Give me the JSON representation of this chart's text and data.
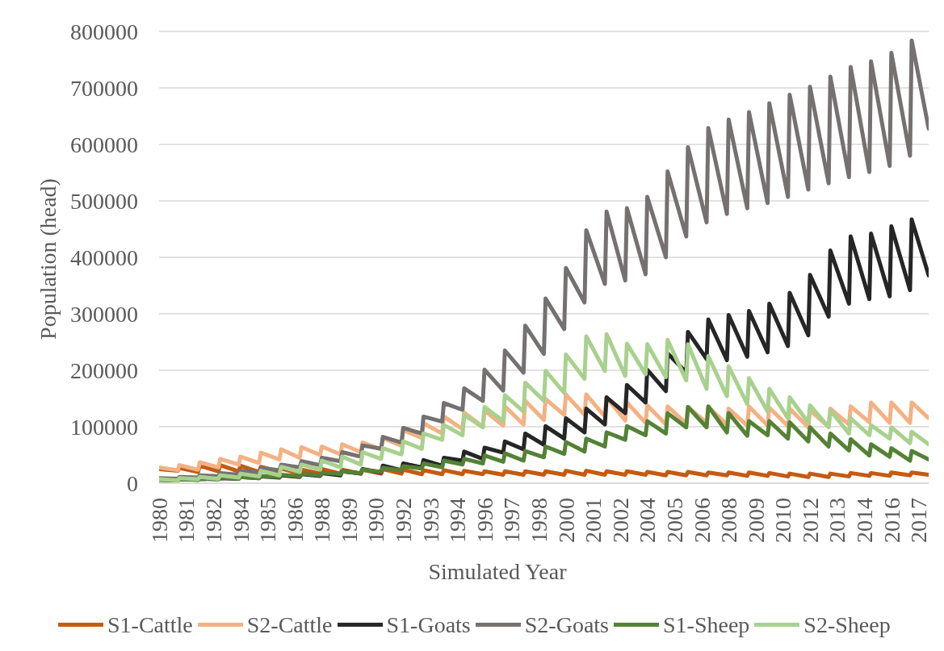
{
  "chart_data": {
    "type": "line",
    "xlabel": "Simulated Year",
    "ylabel": "Population (head)",
    "x": [
      "1980-01",
      "1980-12",
      "1981-01",
      "1981-12",
      "1982-01",
      "1982-12",
      "1983-01",
      "1983-12",
      "1984-01",
      "1984-12",
      "1985-01",
      "1985-12",
      "1986-01",
      "1986-12",
      "1987-01",
      "1987-12",
      "1988-01",
      "1988-12",
      "1989-01",
      "1989-12",
      "1990-01",
      "1990-12",
      "1991-01",
      "1991-12",
      "1992-01",
      "1992-12",
      "1993-01",
      "1993-12",
      "1994-01",
      "1994-12",
      "1995-01",
      "1995-12",
      "1996-01",
      "1996-12",
      "1997-01",
      "1997-12",
      "1998-01",
      "1998-12",
      "1999-01",
      "1999-12",
      "2000-01",
      "2000-12",
      "2001-01",
      "2001-12",
      "2002-01",
      "2002-12",
      "2003-01",
      "2003-12",
      "2004-01",
      "2004-12",
      "2005-01",
      "2005-12",
      "2006-01",
      "2006-12",
      "2007-01",
      "2007-12",
      "2008-01",
      "2008-12",
      "2009-01",
      "2009-12",
      "2010-01",
      "2010-12",
      "2011-01",
      "2011-12",
      "2012-01",
      "2012-12",
      "2013-01",
      "2013-12",
      "2014-01",
      "2014-12",
      "2015-01",
      "2015-12",
      "2016-01",
      "2016-12",
      "2017-01",
      "2017-11"
    ],
    "xlim": [
      "1980-01",
      "2017-11"
    ],
    "xticks": [
      {
        "value": "1980-01",
        "label": "1980"
      },
      {
        "value": "1981-05",
        "label": "1981"
      },
      {
        "value": "1982-09",
        "label": "1982"
      },
      {
        "value": "1984-01",
        "label": "1984"
      },
      {
        "value": "1985-05",
        "label": "1985"
      },
      {
        "value": "1986-09",
        "label": "1986"
      },
      {
        "value": "1988-01",
        "label": "1988"
      },
      {
        "value": "1989-05",
        "label": "1989"
      },
      {
        "value": "1990-09",
        "label": "1990"
      },
      {
        "value": "1992-01",
        "label": "1992"
      },
      {
        "value": "1993-05",
        "label": "1993"
      },
      {
        "value": "1994-09",
        "label": "1994"
      },
      {
        "value": "1996-01",
        "label": "1996"
      },
      {
        "value": "1997-05",
        "label": "1997"
      },
      {
        "value": "1998-09",
        "label": "1998"
      },
      {
        "value": "2000-01",
        "label": "2000"
      },
      {
        "value": "2001-05",
        "label": "2001"
      },
      {
        "value": "2002-09",
        "label": "2002"
      },
      {
        "value": "2004-01",
        "label": "2004"
      },
      {
        "value": "2005-05",
        "label": "2005"
      },
      {
        "value": "2006-09",
        "label": "2006"
      },
      {
        "value": "2008-01",
        "label": "2008"
      },
      {
        "value": "2009-05",
        "label": "2009"
      },
      {
        "value": "2010-09",
        "label": "2010"
      },
      {
        "value": "2012-01",
        "label": "2012"
      },
      {
        "value": "2013-05",
        "label": "2013"
      },
      {
        "value": "2014-09",
        "label": "2014"
      },
      {
        "value": "2016-01",
        "label": "2016"
      },
      {
        "value": "2017-05",
        "label": "2017"
      }
    ],
    "ylim": [
      0,
      800000
    ],
    "yticks": [
      0,
      100000,
      200000,
      300000,
      400000,
      500000,
      600000,
      700000,
      800000
    ],
    "grid": "y",
    "legend": "bottom",
    "series": [
      {
        "name": "S1-Cattle",
        "color": "#c55a11",
        "values": [
          25000,
          22000,
          27000,
          20000,
          31000,
          21000,
          32000,
          21000,
          31000,
          20000,
          29000,
          20000,
          26000,
          17000,
          24000,
          17000,
          25000,
          17000,
          24000,
          17000,
          24000,
          17000,
          25000,
          17000,
          24000,
          16000,
          23000,
          16000,
          23000,
          16000,
          22000,
          16000,
          21000,
          15000,
          21000,
          15000,
          21000,
          15000,
          21000,
          15000,
          22000,
          15000,
          22000,
          15000,
          21000,
          15000,
          21000,
          15000,
          20000,
          14000,
          20000,
          14000,
          20000,
          14000,
          19000,
          14000,
          19000,
          13000,
          19000,
          13000,
          18000,
          12000,
          17000,
          11000,
          17000,
          11000,
          17000,
          12000,
          18000,
          13000,
          18000,
          13000,
          19000,
          14000,
          19000,
          15000
        ]
      },
      {
        "name": "S2-Cattle",
        "color": "#f4b183",
        "values": [
          28000,
          23000,
          32000,
          24000,
          37000,
          28000,
          43000,
          33000,
          47000,
          36000,
          54000,
          42000,
          60000,
          45000,
          64000,
          50000,
          65000,
          51000,
          69000,
          55000,
          72000,
          60000,
          80000,
          66000,
          94000,
          80000,
          106000,
          88000,
          118000,
          96000,
          125000,
          100000,
          129000,
          102000,
          136000,
          104000,
          146000,
          112000,
          149000,
          121000,
          157000,
          121000,
          157000,
          118000,
          152000,
          111000,
          143000,
          107000,
          138000,
          104000,
          136000,
          106000,
          135000,
          107000,
          135000,
          104000,
          132000,
          102000,
          136000,
          102000,
          134000,
          101000,
          132000,
          99000,
          129000,
          100000,
          132000,
          104000,
          136000,
          108000,
          143000,
          107000,
          143000,
          107000,
          143000,
          115000
        ]
      },
      {
        "name": "S1-Goats",
        "color": "#262626",
        "values": [
          6000,
          5000,
          7000,
          6000,
          8000,
          7000,
          9000,
          8000,
          11000,
          9000,
          12000,
          10000,
          14000,
          11000,
          16000,
          13000,
          18000,
          14000,
          21000,
          17000,
          25000,
          19000,
          31000,
          23000,
          35000,
          28000,
          41000,
          31000,
          45000,
          40000,
          56000,
          43000,
          63000,
          54000,
          74000,
          60000,
          88000,
          68000,
          101000,
          79000,
          115000,
          90000,
          132000,
          104000,
          152000,
          124000,
          174000,
          143000,
          201000,
          163000,
          230000,
          196000,
          268000,
          220000,
          290000,
          218000,
          298000,
          224000,
          305000,
          232000,
          318000,
          243000,
          337000,
          262000,
          369000,
          295000,
          412000,
          318000,
          437000,
          326000,
          442000,
          331000,
          455000,
          342000,
          467000,
          368000
        ]
      },
      {
        "name": "S2-Goats",
        "color": "#767171",
        "values": [
          9000,
          8000,
          11000,
          10000,
          14000,
          12000,
          18000,
          15000,
          22000,
          19000,
          27000,
          23000,
          33000,
          28000,
          39000,
          32000,
          45000,
          39000,
          55000,
          47000,
          67000,
          61000,
          82000,
          72000,
          98000,
          88000,
          118000,
          109000,
          142000,
          130000,
          168000,
          146000,
          201000,
          164000,
          235000,
          196000,
          279000,
          229000,
          327000,
          273000,
          381000,
          320000,
          448000,
          353000,
          481000,
          359000,
          487000,
          370000,
          507000,
          400000,
          552000,
          437000,
          595000,
          462000,
          629000,
          477000,
          644000,
          487000,
          657000,
          496000,
          673000,
          507000,
          688000,
          520000,
          702000,
          531000,
          720000,
          542000,
          737000,
          551000,
          747000,
          562000,
          762000,
          580000,
          784000,
          628000
        ]
      },
      {
        "name": "S1-Sheep",
        "color": "#548235",
        "values": [
          6000,
          5000,
          7000,
          6000,
          8000,
          7000,
          10000,
          8000,
          11000,
          9000,
          13000,
          11000,
          15000,
          12000,
          17000,
          14000,
          19000,
          16000,
          21000,
          18000,
          24000,
          20000,
          27000,
          23000,
          30000,
          26000,
          35000,
          28000,
          40000,
          33000,
          43000,
          35000,
          49000,
          38000,
          53000,
          40000,
          57000,
          46000,
          65000,
          52000,
          73000,
          56000,
          79000,
          65000,
          90000,
          77000,
          101000,
          85000,
          110000,
          88000,
          124000,
          99000,
          135000,
          99000,
          136000,
          90000,
          124000,
          84000,
          110000,
          85000,
          110000,
          79000,
          108000,
          74000,
          99000,
          65000,
          88000,
          58000,
          78000,
          49000,
          69000,
          47000,
          62000,
          40000,
          57000,
          42000
        ]
      },
      {
        "name": "S2-Sheep",
        "color": "#a9d18e",
        "values": [
          7000,
          5000,
          9000,
          7000,
          11000,
          8000,
          14000,
          10000,
          17000,
          12000,
          22000,
          14000,
          29000,
          20000,
          33000,
          24000,
          40000,
          28000,
          47000,
          33000,
          55000,
          43000,
          62000,
          51000,
          74000,
          61000,
          88000,
          77000,
          103000,
          85000,
          121000,
          99000,
          135000,
          110000,
          156000,
          127000,
          178000,
          146000,
          199000,
          160000,
          228000,
          185000,
          260000,
          199000,
          264000,
          190000,
          247000,
          193000,
          246000,
          188000,
          254000,
          182000,
          246000,
          167000,
          225000,
          154000,
          207000,
          140000,
          186000,
          127000,
          167000,
          115000,
          152000,
          107000,
          138000,
          99000,
          129000,
          88000,
          115000,
          85000,
          103000,
          79000,
          99000,
          71000,
          91000,
          69000
        ]
      }
    ]
  }
}
